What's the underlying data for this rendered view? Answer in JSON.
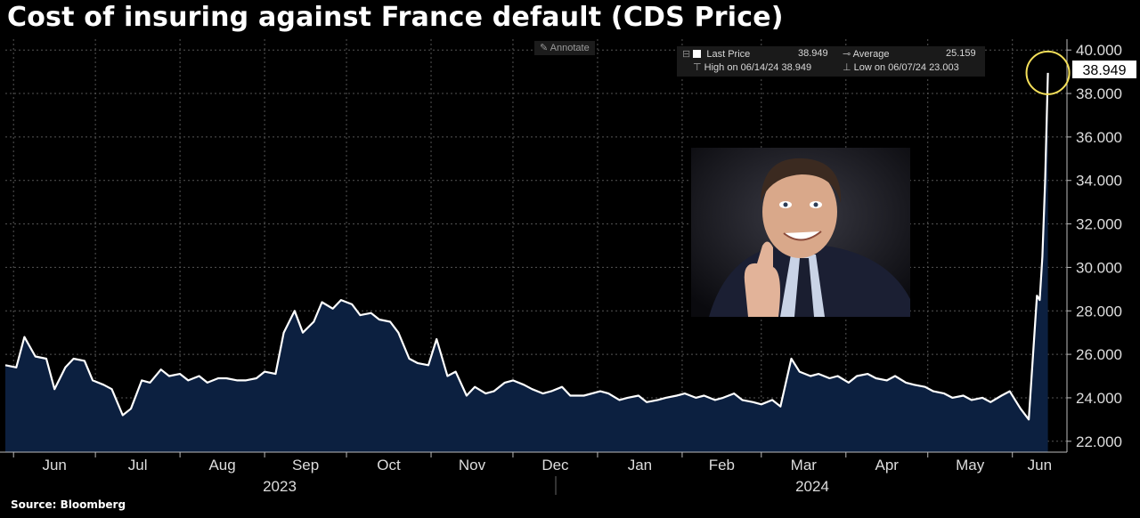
{
  "title": "Cost of insuring against France default (CDS Price)",
  "source": "Source: Bloomberg",
  "annotate_label": "Annotate",
  "legend": {
    "last_price_label": "Last Price",
    "last_price": "38.949",
    "average_label": "Average",
    "average": "25.159",
    "high_label": "High on 06/14/24",
    "high": "38.949",
    "low_label": "Low on 06/07/24",
    "low": "23.003"
  },
  "price_tag": "38.949",
  "colors": {
    "line": "#ffffff",
    "area": "#0c2040",
    "highlight_circle": "#f5e05a",
    "grid": "#555555"
  },
  "chart_data": {
    "type": "area",
    "ylim": [
      21.5,
      40.5
    ],
    "y_ticks": [
      "40.000",
      "38.000",
      "36.000",
      "34.000",
      "32.000",
      "30.000",
      "28.000",
      "26.000",
      "24.000",
      "22.000"
    ],
    "y_tick_values": [
      40,
      38,
      36,
      34,
      32,
      30,
      28,
      26,
      24,
      22
    ],
    "months": [
      "Jun",
      "Jul",
      "Aug",
      "Sep",
      "Oct",
      "Nov",
      "Dec",
      "Jan",
      "Feb",
      "Mar",
      "Apr",
      "May",
      "Jun"
    ],
    "years": [
      "2023",
      "2024"
    ],
    "x_range": [
      "2023-05-29",
      "2024-06-21"
    ],
    "series": [
      {
        "x": [
          "2023-05-29",
          "2023-06-02",
          "2023-06-05",
          "2023-06-09",
          "2023-06-13",
          "2023-06-16",
          "2023-06-20",
          "2023-06-23",
          "2023-06-27",
          "2023-06-30",
          "2023-07-04",
          "2023-07-07",
          "2023-07-11",
          "2023-07-14",
          "2023-07-18",
          "2023-07-21",
          "2023-07-25",
          "2023-07-28",
          "2023-08-01",
          "2023-08-04",
          "2023-08-08",
          "2023-08-11",
          "2023-08-15",
          "2023-08-18",
          "2023-08-22",
          "2023-08-25",
          "2023-08-29",
          "2023-09-01",
          "2023-09-05",
          "2023-09-08",
          "2023-09-12",
          "2023-09-15",
          "2023-09-19",
          "2023-09-22",
          "2023-09-26",
          "2023-09-29",
          "2023-10-03",
          "2023-10-06",
          "2023-10-10",
          "2023-10-13",
          "2023-10-17",
          "2023-10-20",
          "2023-10-24",
          "2023-10-27",
          "2023-10-31",
          "2023-11-03",
          "2023-11-07",
          "2023-11-10",
          "2023-11-14",
          "2023-11-17",
          "2023-11-21",
          "2023-11-24",
          "2023-11-28",
          "2023-12-01",
          "2023-12-05",
          "2023-12-08",
          "2023-12-12",
          "2023-12-15",
          "2023-12-19",
          "2023-12-22",
          "2023-12-27",
          "2024-01-02",
          "2024-01-05",
          "2024-01-09",
          "2024-01-12",
          "2024-01-16",
          "2024-01-19",
          "2024-01-23",
          "2024-01-26",
          "2024-01-30",
          "2024-02-02",
          "2024-02-06",
          "2024-02-09",
          "2024-02-13",
          "2024-02-16",
          "2024-02-20",
          "2024-02-23",
          "2024-02-27",
          "2024-03-01",
          "2024-03-05",
          "2024-03-08",
          "2024-03-12",
          "2024-03-15",
          "2024-03-19",
          "2024-03-22",
          "2024-03-26",
          "2024-03-29",
          "2024-04-02",
          "2024-04-05",
          "2024-04-09",
          "2024-04-12",
          "2024-04-16",
          "2024-04-19",
          "2024-04-23",
          "2024-04-26",
          "2024-04-30",
          "2024-05-03",
          "2024-05-07",
          "2024-05-10",
          "2024-05-14",
          "2024-05-17",
          "2024-05-21",
          "2024-05-24",
          "2024-05-28",
          "2024-05-31",
          "2024-06-04",
          "2024-06-07",
          "2024-06-10",
          "2024-06-11",
          "2024-06-12",
          "2024-06-13",
          "2024-06-14"
        ],
        "values": [
          25.5,
          25.4,
          26.8,
          25.9,
          25.8,
          24.4,
          25.4,
          25.8,
          25.7,
          24.8,
          24.6,
          24.4,
          23.2,
          23.5,
          24.8,
          24.7,
          25.3,
          25.0,
          25.1,
          24.8,
          25.0,
          24.7,
          24.9,
          24.9,
          24.8,
          24.8,
          24.9,
          25.2,
          25.1,
          27.0,
          28.0,
          27.0,
          27.5,
          28.4,
          28.1,
          28.5,
          28.3,
          27.8,
          27.9,
          27.6,
          27.5,
          27.0,
          25.8,
          25.6,
          25.5,
          26.7,
          25.0,
          25.2,
          24.1,
          24.5,
          24.2,
          24.3,
          24.7,
          24.8,
          24.6,
          24.4,
          24.2,
          24.3,
          24.5,
          24.1,
          24.1,
          24.3,
          24.2,
          23.9,
          24.0,
          24.1,
          23.8,
          23.9,
          24.0,
          24.1,
          24.2,
          24.0,
          24.1,
          23.9,
          24.0,
          24.2,
          23.9,
          23.8,
          23.7,
          23.9,
          23.6,
          25.8,
          25.2,
          25.0,
          25.1,
          24.9,
          25.0,
          24.7,
          25.0,
          25.1,
          24.9,
          24.8,
          25.0,
          24.7,
          24.6,
          24.5,
          24.3,
          24.2,
          24.0,
          24.1,
          23.9,
          24.0,
          23.8,
          24.1,
          24.3,
          23.5,
          23.003,
          28.7,
          28.5,
          30.5,
          34.0,
          38.949
        ]
      }
    ],
    "highlight": {
      "x": "2024-06-14",
      "y": 38.949
    }
  }
}
